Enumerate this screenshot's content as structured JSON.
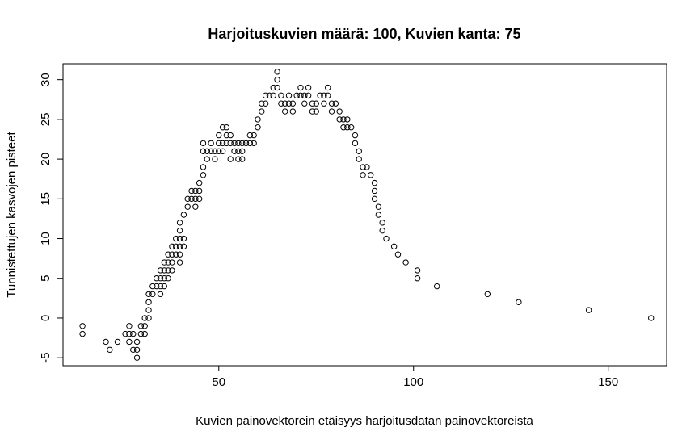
{
  "chart_data": {
    "type": "scatter",
    "title": "Harjoituskuvien määrä: 100, Kuvien kanta: 75",
    "xlabel": "Kuvien painovektorein etäisyys harjoitusdatan painovektoreista",
    "ylabel": "Tunnistettujen kasvojen pisteet",
    "xlim": [
      10,
      165
    ],
    "ylim": [
      -6,
      32
    ],
    "x_ticks": [
      50,
      100,
      150
    ],
    "y_ticks": [
      -5,
      0,
      5,
      10,
      15,
      20,
      25,
      30
    ],
    "grid": false,
    "legend": "none",
    "marker": "open-circle",
    "points": [
      [
        15,
        -1
      ],
      [
        15,
        -2
      ],
      [
        21,
        -3
      ],
      [
        22,
        -4
      ],
      [
        24,
        -3
      ],
      [
        26,
        -2
      ],
      [
        27,
        -1
      ],
      [
        27,
        -2
      ],
      [
        27,
        -3
      ],
      [
        28,
        -4
      ],
      [
        28,
        -2
      ],
      [
        29,
        -5
      ],
      [
        29,
        -4
      ],
      [
        29,
        -3
      ],
      [
        30,
        -2
      ],
      [
        30,
        -1
      ],
      [
        31,
        -1
      ],
      [
        31,
        -2
      ],
      [
        31,
        0
      ],
      [
        32,
        0
      ],
      [
        32,
        1
      ],
      [
        32,
        2
      ],
      [
        32,
        3
      ],
      [
        33,
        3
      ],
      [
        33,
        4
      ],
      [
        34,
        4
      ],
      [
        34,
        5
      ],
      [
        35,
        4
      ],
      [
        35,
        5
      ],
      [
        35,
        6
      ],
      [
        35,
        3
      ],
      [
        36,
        4
      ],
      [
        36,
        5
      ],
      [
        36,
        6
      ],
      [
        36,
        7
      ],
      [
        37,
        5
      ],
      [
        37,
        6
      ],
      [
        37,
        7
      ],
      [
        37,
        8
      ],
      [
        38,
        6
      ],
      [
        38,
        7
      ],
      [
        38,
        8
      ],
      [
        38,
        9
      ],
      [
        39,
        8
      ],
      [
        39,
        9
      ],
      [
        39,
        10
      ],
      [
        40,
        7
      ],
      [
        40,
        8
      ],
      [
        40,
        9
      ],
      [
        40,
        10
      ],
      [
        40,
        11
      ],
      [
        40,
        12
      ],
      [
        41,
        9
      ],
      [
        41,
        10
      ],
      [
        41,
        13
      ],
      [
        42,
        14
      ],
      [
        42,
        15
      ],
      [
        43,
        15
      ],
      [
        43,
        16
      ],
      [
        44,
        14
      ],
      [
        44,
        15
      ],
      [
        44,
        16
      ],
      [
        45,
        15
      ],
      [
        45,
        16
      ],
      [
        45,
        17
      ],
      [
        46,
        18
      ],
      [
        46,
        19
      ],
      [
        46,
        21
      ],
      [
        46,
        22
      ],
      [
        47,
        20
      ],
      [
        47,
        21
      ],
      [
        48,
        21
      ],
      [
        48,
        22
      ],
      [
        49,
        20
      ],
      [
        49,
        21
      ],
      [
        50,
        21
      ],
      [
        50,
        22
      ],
      [
        50,
        23
      ],
      [
        51,
        21
      ],
      [
        51,
        22
      ],
      [
        51,
        24
      ],
      [
        52,
        22
      ],
      [
        52,
        23
      ],
      [
        52,
        24
      ],
      [
        53,
        20
      ],
      [
        53,
        22
      ],
      [
        53,
        23
      ],
      [
        54,
        21
      ],
      [
        54,
        22
      ],
      [
        55,
        20
      ],
      [
        55,
        21
      ],
      [
        55,
        22
      ],
      [
        56,
        20
      ],
      [
        56,
        21
      ],
      [
        56,
        22
      ],
      [
        57,
        22
      ],
      [
        58,
        22
      ],
      [
        58,
        23
      ],
      [
        59,
        22
      ],
      [
        59,
        23
      ],
      [
        60,
        24
      ],
      [
        60,
        25
      ],
      [
        61,
        26
      ],
      [
        61,
        27
      ],
      [
        62,
        27
      ],
      [
        62,
        28
      ],
      [
        63,
        28
      ],
      [
        64,
        28
      ],
      [
        64,
        29
      ],
      [
        65,
        29
      ],
      [
        65,
        30
      ],
      [
        65,
        31
      ],
      [
        66,
        27
      ],
      [
        66,
        28
      ],
      [
        67,
        26
      ],
      [
        67,
        27
      ],
      [
        68,
        27
      ],
      [
        68,
        28
      ],
      [
        69,
        26
      ],
      [
        69,
        27
      ],
      [
        70,
        28
      ],
      [
        71,
        29
      ],
      [
        71,
        28
      ],
      [
        72,
        28
      ],
      [
        72,
        27
      ],
      [
        73,
        29
      ],
      [
        73,
        28
      ],
      [
        74,
        27
      ],
      [
        74,
        26
      ],
      [
        75,
        26
      ],
      [
        75,
        27
      ],
      [
        76,
        28
      ],
      [
        77,
        27
      ],
      [
        77,
        28
      ],
      [
        78,
        28
      ],
      [
        78,
        29
      ],
      [
        79,
        27
      ],
      [
        79,
        26
      ],
      [
        80,
        27
      ],
      [
        81,
        26
      ],
      [
        81,
        25
      ],
      [
        82,
        25
      ],
      [
        82,
        24
      ],
      [
        83,
        24
      ],
      [
        83,
        25
      ],
      [
        84,
        24
      ],
      [
        85,
        23
      ],
      [
        85,
        22
      ],
      [
        86,
        21
      ],
      [
        86,
        20
      ],
      [
        87,
        19
      ],
      [
        87,
        18
      ],
      [
        88,
        19
      ],
      [
        89,
        18
      ],
      [
        90,
        17
      ],
      [
        90,
        16
      ],
      [
        90,
        15
      ],
      [
        91,
        14
      ],
      [
        91,
        13
      ],
      [
        92,
        12
      ],
      [
        92,
        11
      ],
      [
        93,
        10
      ],
      [
        95,
        9
      ],
      [
        96,
        8
      ],
      [
        98,
        7
      ],
      [
        101,
        6
      ],
      [
        101,
        5
      ],
      [
        106,
        4
      ],
      [
        119,
        3
      ],
      [
        127,
        2
      ],
      [
        145,
        1
      ],
      [
        161,
        0
      ]
    ]
  }
}
